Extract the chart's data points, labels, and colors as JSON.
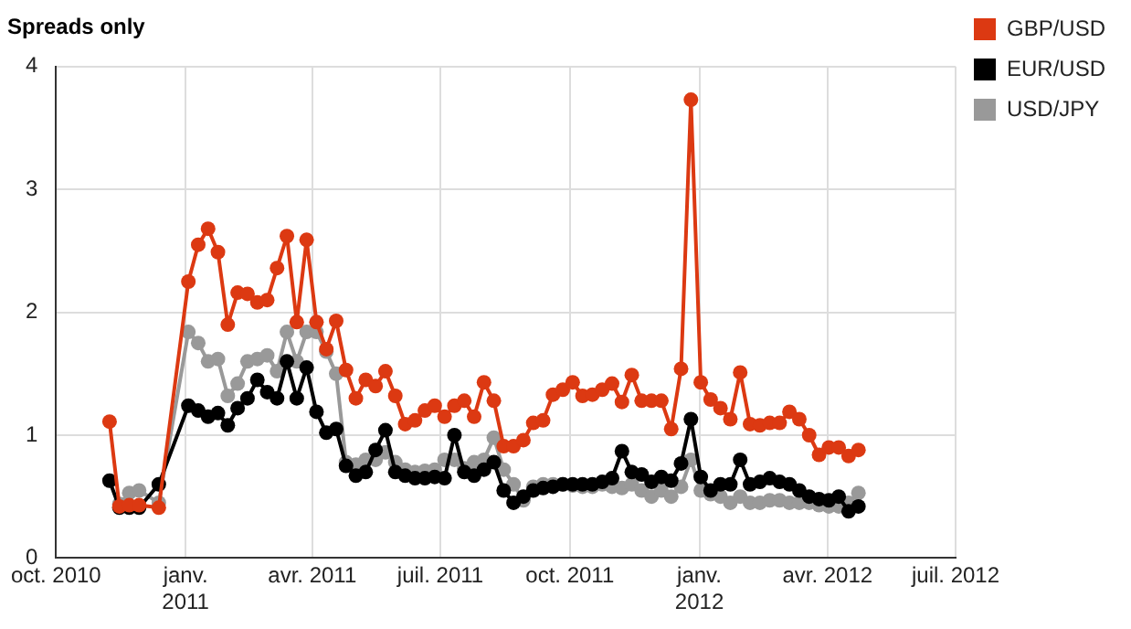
{
  "chart_data": {
    "type": "line",
    "title": "Spreads only",
    "x": [
      "2010-11-08",
      "2010-11-15",
      "2010-11-22",
      "2010-11-29",
      "2010-12-06",
      "2010-12-13",
      "2010-12-20",
      "2010-12-27",
      "2011-01-03",
      "2011-01-10",
      "2011-01-17",
      "2011-01-24",
      "2011-01-31",
      "2011-02-07",
      "2011-02-14",
      "2011-02-21",
      "2011-02-28",
      "2011-03-07",
      "2011-03-14",
      "2011-03-21",
      "2011-03-28",
      "2011-04-04",
      "2011-04-11",
      "2011-04-18",
      "2011-04-25",
      "2011-05-02",
      "2011-05-09",
      "2011-05-16",
      "2011-05-23",
      "2011-05-30",
      "2011-06-06",
      "2011-06-13",
      "2011-06-20",
      "2011-06-27",
      "2011-07-04",
      "2011-07-11",
      "2011-07-18",
      "2011-07-25",
      "2011-08-01",
      "2011-08-08",
      "2011-08-15",
      "2011-08-22",
      "2011-08-29",
      "2011-09-05",
      "2011-09-12",
      "2011-09-19",
      "2011-09-26",
      "2011-10-03",
      "2011-10-10",
      "2011-10-17",
      "2011-10-24",
      "2011-10-31",
      "2011-11-07",
      "2011-11-14",
      "2011-11-21",
      "2011-11-28",
      "2011-12-05",
      "2011-12-12",
      "2011-12-19",
      "2011-12-26",
      "2012-01-02",
      "2012-01-09",
      "2012-01-16",
      "2012-01-23",
      "2012-01-30",
      "2012-02-06",
      "2012-02-13",
      "2012-02-20",
      "2012-02-27",
      "2012-03-05",
      "2012-03-12",
      "2012-03-19",
      "2012-03-26",
      "2012-04-02",
      "2012-04-09",
      "2012-04-16",
      "2012-04-23"
    ],
    "series": [
      {
        "name": "GBP/USD",
        "color": "#dc3912",
        "values": [
          1.11,
          0.42,
          0.43,
          0.43,
          null,
          0.41,
          null,
          null,
          2.25,
          2.55,
          2.68,
          2.49,
          1.9,
          2.16,
          2.15,
          2.08,
          2.1,
          2.36,
          2.62,
          1.92,
          2.59,
          1.92,
          1.7,
          1.93,
          1.53,
          1.3,
          1.45,
          1.4,
          1.52,
          1.32,
          1.09,
          1.12,
          1.2,
          1.24,
          1.15,
          1.24,
          1.28,
          1.15,
          1.43,
          1.28,
          0.91,
          0.91,
          0.96,
          1.1,
          1.12,
          1.33,
          1.37,
          1.43,
          1.32,
          1.33,
          1.37,
          1.42,
          1.27,
          1.49,
          1.28,
          1.28,
          1.28,
          1.05,
          1.54,
          3.73,
          1.43,
          1.29,
          1.22,
          1.13,
          1.51,
          1.09,
          1.08,
          1.1,
          1.1,
          1.19,
          1.13,
          1.0,
          0.84,
          0.9,
          0.9,
          0.83,
          0.88
        ]
      },
      {
        "name": "EUR/USD",
        "color": "#000000",
        "values": [
          0.63,
          0.41,
          0.41,
          0.41,
          null,
          0.6,
          null,
          null,
          1.24,
          1.2,
          1.15,
          1.18,
          1.08,
          1.22,
          1.3,
          1.45,
          1.35,
          1.3,
          1.6,
          1.3,
          1.55,
          1.19,
          1.02,
          1.05,
          0.75,
          0.67,
          0.7,
          0.88,
          1.04,
          0.7,
          0.67,
          0.65,
          0.65,
          0.66,
          0.65,
          1.0,
          0.7,
          0.67,
          0.72,
          0.78,
          0.55,
          0.45,
          0.5,
          0.55,
          0.57,
          0.58,
          0.6,
          0.6,
          0.6,
          0.6,
          0.62,
          0.65,
          0.87,
          0.7,
          0.68,
          0.62,
          0.66,
          0.63,
          0.77,
          1.13,
          0.66,
          0.55,
          0.6,
          0.6,
          0.8,
          0.6,
          0.62,
          0.65,
          0.62,
          0.6,
          0.55,
          0.5,
          0.48,
          0.47,
          0.5,
          0.38,
          0.42
        ]
      },
      {
        "name": "USD/JPY",
        "color": "#999999",
        "values": [
          null,
          0.44,
          0.53,
          0.55,
          null,
          0.45,
          null,
          null,
          1.84,
          1.75,
          1.6,
          1.62,
          1.32,
          1.42,
          1.6,
          1.62,
          1.65,
          1.52,
          1.84,
          1.6,
          1.84,
          1.84,
          1.68,
          1.5,
          0.78,
          0.76,
          0.8,
          0.8,
          0.86,
          0.78,
          0.72,
          0.7,
          0.71,
          0.72,
          0.8,
          0.8,
          0.73,
          0.78,
          0.8,
          0.98,
          0.72,
          0.6,
          0.47,
          0.58,
          0.6,
          0.6,
          0.6,
          0.59,
          0.58,
          0.58,
          0.6,
          0.58,
          0.57,
          0.6,
          0.55,
          0.5,
          0.55,
          0.5,
          0.58,
          0.8,
          0.55,
          0.52,
          0.5,
          0.45,
          0.5,
          0.45,
          0.45,
          0.47,
          0.47,
          0.45,
          0.45,
          0.45,
          0.43,
          0.42,
          0.42,
          0.45,
          0.53
        ]
      }
    ],
    "xlim": [
      "2010-10-01",
      "2012-07-01"
    ],
    "xticks": [
      {
        "value": "2010-10-01",
        "label": "oct. 2010"
      },
      {
        "value": "2011-01-01",
        "label": "janv.\n2011"
      },
      {
        "value": "2011-04-01",
        "label": "avr. 2011"
      },
      {
        "value": "2011-07-01",
        "label": "juil. 2011"
      },
      {
        "value": "2011-10-01",
        "label": "oct. 2011"
      },
      {
        "value": "2012-01-01",
        "label": "janv.\n2012"
      },
      {
        "value": "2012-04-01",
        "label": "avr. 2012"
      },
      {
        "value": "2012-07-01",
        "label": "juil. 2012"
      }
    ],
    "ylim": [
      0,
      4
    ],
    "yticks": [
      0,
      1,
      2,
      3,
      4
    ],
    "grid": true,
    "legend": "top right",
    "marker": "circle",
    "line_style": "solid"
  }
}
